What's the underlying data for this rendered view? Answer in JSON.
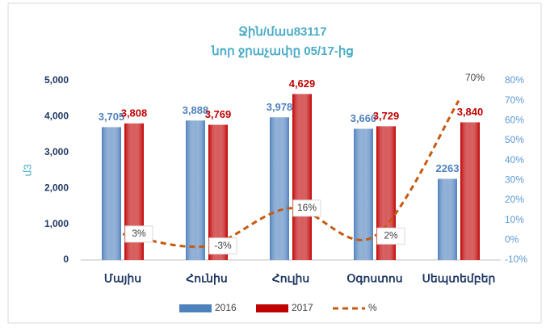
{
  "chart_data": {
    "type": "bar_line",
    "title": "Ջին/մաս83117",
    "subtitle": "նոր ջրաչափը 05/17-ից",
    "y_label": "մ3",
    "categories": [
      "Մայիս",
      "Հունիս",
      "Հուլիս",
      "Օգոստոս",
      "Սեպտեմբեր"
    ],
    "series": [
      {
        "name": "2016",
        "color": "#4f81bd",
        "values": [
          3705,
          3888,
          3978,
          3660,
          2263
        ],
        "value_labels": [
          "3,705",
          "3,888",
          "3,978",
          "3,660",
          "2263"
        ]
      },
      {
        "name": "2017",
        "color": "#c00000",
        "values": [
          3808,
          3769,
          4629,
          3729,
          3840
        ],
        "value_labels": [
          "3,808",
          "3,769",
          "4,629",
          "3,729",
          "3,840"
        ]
      },
      {
        "name": "%",
        "color": "#c55a11",
        "axis": "y2",
        "values": [
          3,
          -3,
          16,
          2,
          70
        ],
        "value_labels": [
          "3%",
          "-3%",
          "16%",
          "2%",
          "70%"
        ]
      }
    ],
    "ylim": [
      0,
      5000
    ],
    "yticks": [
      0,
      {
        "value": 1000,
        "label": "1,000"
      },
      {
        "value": 2000,
        "label": "2,000"
      },
      {
        "value": 3000,
        "label": "3,000"
      },
      {
        "value": 4000,
        "label": "4,000"
      },
      {
        "value": 5000,
        "label": "5,000"
      }
    ],
    "y2lim": [
      -10,
      80
    ],
    "y2ticks": [
      {
        "value": -10,
        "label": "-10%"
      },
      {
        "value": 0,
        "label": "0%"
      },
      {
        "value": 10,
        "label": "10%"
      },
      {
        "value": 20,
        "label": "20%"
      },
      {
        "value": 30,
        "label": "30%"
      },
      {
        "value": 40,
        "label": "40%"
      },
      {
        "value": 50,
        "label": "50%"
      },
      {
        "value": 60,
        "label": "60%"
      },
      {
        "value": 70,
        "label": "70%"
      },
      {
        "value": 80,
        "label": "80%"
      }
    ]
  }
}
